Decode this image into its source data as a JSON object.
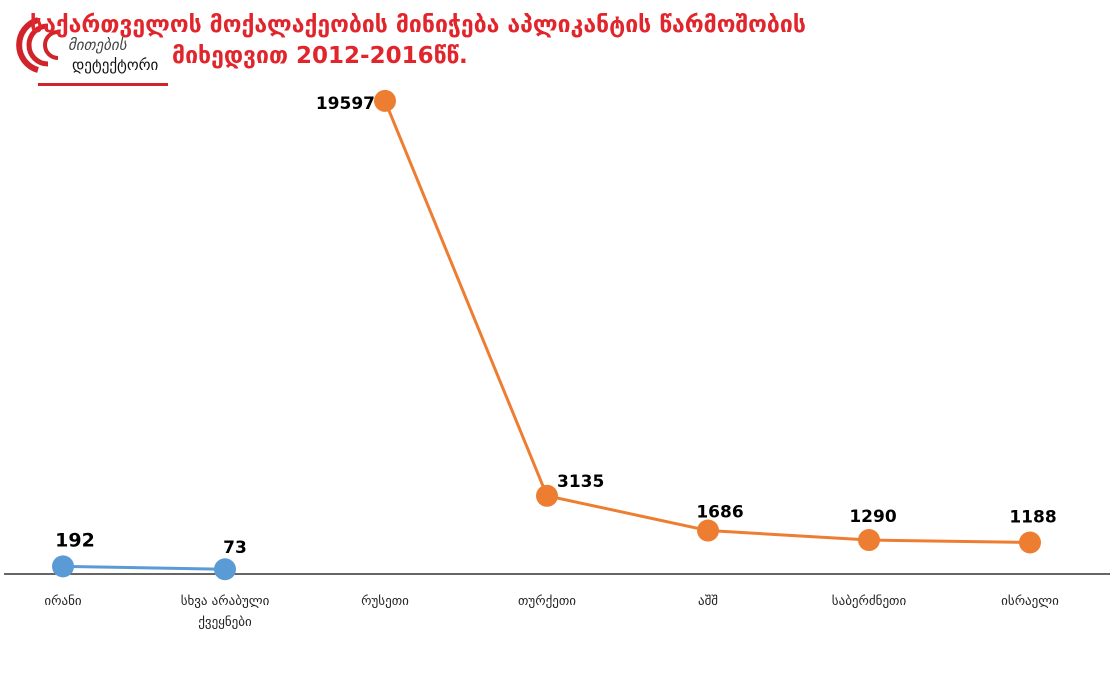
{
  "title": {
    "line1": "საქართველოს მოქალაქეობის მინიჭება აპლიკანტის წარმოშობის",
    "line2": "მიხედვით 2012-2016წწ."
  },
  "logo": {
    "line1": "მითების",
    "line2": "დეტექტორი"
  },
  "colors": {
    "series_blue": "#5b9bd5",
    "series_orange": "#ed7d31",
    "title": "#e0262c"
  },
  "chart_data": {
    "type": "line",
    "categories": [
      "ირანი",
      "სხვა არაბული ქვეყნები",
      "რუსეთი",
      "თურქეთი",
      "აშშ",
      "საბერძნეთი",
      "ისრაელი"
    ],
    "category_lines": [
      [
        "ირანი"
      ],
      [
        "სხვა არაბული",
        "ქვეყნები"
      ],
      [
        "რუსეთი"
      ],
      [
        "თურქეთი"
      ],
      [
        "აშშ"
      ],
      [
        "საბერძნეთი"
      ],
      [
        "ისრაელი"
      ]
    ],
    "series": [
      {
        "color": "#5b9bd5",
        "points": [
          {
            "category": 0,
            "value": 192
          },
          {
            "category": 1,
            "value": 73
          }
        ]
      },
      {
        "color": "#ed7d31",
        "points": [
          {
            "category": 2,
            "value": 19597
          },
          {
            "category": 3,
            "value": 3135
          },
          {
            "category": 4,
            "value": 1686
          },
          {
            "category": 5,
            "value": 1290
          },
          {
            "category": 6,
            "value": 1188
          }
        ]
      }
    ],
    "ylim": [
      0,
      20000
    ],
    "grid": false,
    "legend": "none"
  }
}
